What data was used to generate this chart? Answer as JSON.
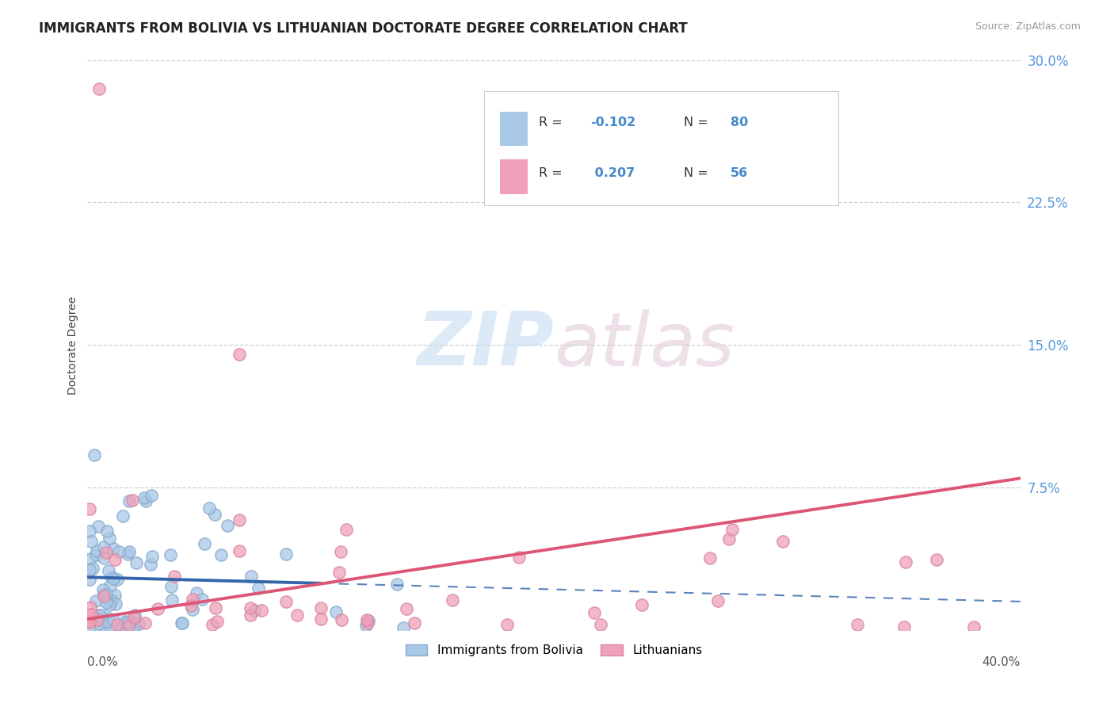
{
  "title": "IMMIGRANTS FROM BOLIVIA VS LITHUANIAN DOCTORATE DEGREE CORRELATION CHART",
  "source": "Source: ZipAtlas.com",
  "ylabel": "Doctorate Degree",
  "xmin": 0.0,
  "xmax": 0.4,
  "ymin": 0.0,
  "ymax": 0.3,
  "yticks": [
    0.0,
    0.075,
    0.15,
    0.225,
    0.3
  ],
  "ytick_labels": [
    "",
    "7.5%",
    "15.0%",
    "22.5%",
    "30.0%"
  ],
  "blue_color": "#a8c8e8",
  "pink_color": "#f0a0b8",
  "blue_edge_color": "#88aacc",
  "pink_edge_color": "#d888a0",
  "blue_line_color": "#3366aa",
  "pink_line_color": "#dd5577",
  "blue_R": -0.102,
  "blue_N": 80,
  "pink_R": 0.207,
  "pink_N": 56,
  "watermark_zip": "ZIP",
  "watermark_atlas": "atlas",
  "background_color": "#ffffff",
  "title_color": "#222222",
  "legend_label_blue": "Immigrants from Bolivia",
  "legend_label_pink": "Lithuanians",
  "blue_reg_intercept": 0.028,
  "blue_reg_slope": -0.032,
  "pink_reg_intercept": 0.006,
  "pink_reg_slope": 0.185
}
